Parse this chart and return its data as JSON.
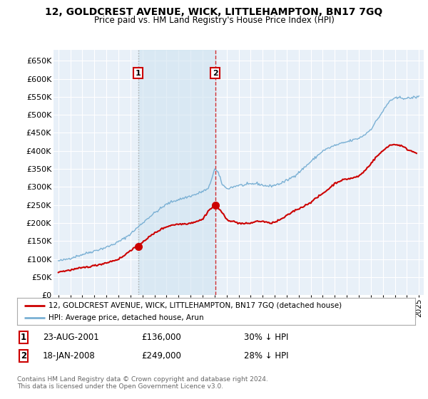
{
  "title": "12, GOLDCREST AVENUE, WICK, LITTLEHAMPTON, BN17 7GQ",
  "subtitle": "Price paid vs. HM Land Registry's House Price Index (HPI)",
  "legend_line1": "12, GOLDCREST AVENUE, WICK, LITTLEHAMPTON, BN17 7GQ (detached house)",
  "legend_line2": "HPI: Average price, detached house, Arun",
  "footnote": "Contains HM Land Registry data © Crown copyright and database right 2024.\nThis data is licensed under the Open Government Licence v3.0.",
  "annotation1_label": "1",
  "annotation1_date": "23-AUG-2001",
  "annotation1_price": "£136,000",
  "annotation1_hpi": "30% ↓ HPI",
  "annotation2_label": "2",
  "annotation2_date": "18-JAN-2008",
  "annotation2_price": "£249,000",
  "annotation2_hpi": "28% ↓ HPI",
  "red_color": "#cc0000",
  "blue_color": "#7ab0d4",
  "shade_color": "#d0e4f0",
  "bg_color": "#ffffff",
  "plot_bg_color": "#e8f0f8",
  "grid_color": "#ffffff",
  "ylim_min": 0,
  "ylim_max": 680000,
  "yticks": [
    0,
    50000,
    100000,
    150000,
    200000,
    250000,
    300000,
    350000,
    400000,
    450000,
    500000,
    550000,
    600000,
    650000
  ],
  "sale1_x": 2001.64,
  "sale1_y": 136000,
  "sale2_x": 2008.05,
  "sale2_y": 249000,
  "xlim_min": 1994.6,
  "xlim_max": 2025.4
}
